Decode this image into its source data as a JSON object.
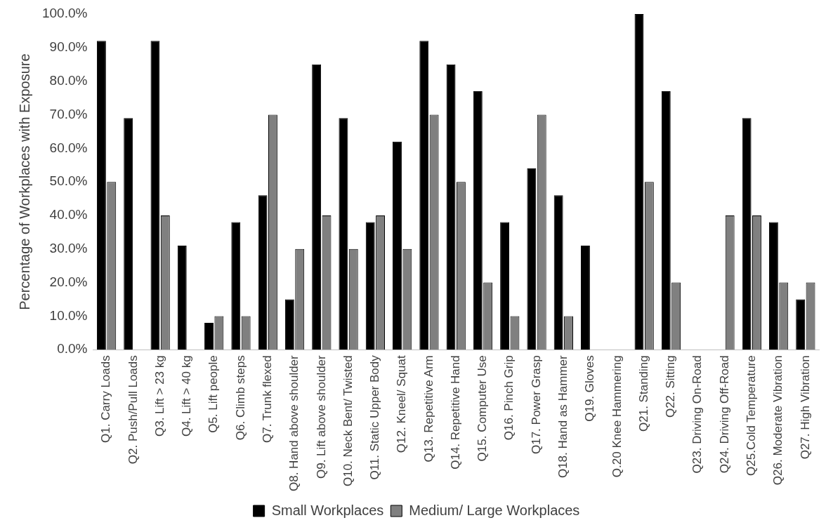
{
  "chart_data": {
    "type": "bar",
    "ylabel": "Percentage of Workplaces with Exposure",
    "categories": [
      "Q1. Carry Loads",
      "Q2. Push/Pull Loads",
      "Q3. Lift > 23 kg",
      "Q4. Lift > 40 kg",
      "Q5. Lift people",
      "Q6. Climb steps",
      "Q7. Trunk flexed",
      "Q8. Hand above shoulder",
      "Q9. Lift above shoulder",
      "Q10. Neck Bent/ Twisted",
      "Q11. Static Upper Body",
      "Q12. Kneel/ Squat",
      "Q13. Repetitive Arm",
      "Q14. Repetitive Hand",
      "Q15. Computer Use",
      "Q16. Pinch Grip",
      "Q17. Power Grasp",
      "Q18. Hand as Hammer",
      "Q19. Gloves",
      "Q.20 Knee Hammering",
      "Q21. Standing",
      "Q22. Sitting",
      "Q23. Driving On-Road",
      "Q24. Driving Off-Road",
      "Q25.Cold Temperature",
      "Q26. Moderate Vibration",
      "Q27. High Vibration"
    ],
    "series": [
      {
        "name": "Small Workplaces",
        "color": "#000000",
        "values": [
          92,
          69,
          92,
          31,
          8,
          38,
          46,
          15,
          85,
          69,
          38,
          62,
          92,
          85,
          77,
          38,
          54,
          46,
          31,
          0,
          100,
          77,
          0,
          0,
          69,
          38,
          15
        ]
      },
      {
        "name": "Medium/ Large Workplaces",
        "color": "#808080",
        "values": [
          50,
          0,
          40,
          0,
          10,
          10,
          70,
          30,
          40,
          30,
          40,
          30,
          70,
          50,
          20,
          10,
          70,
          10,
          0,
          0,
          50,
          20,
          0,
          40,
          40,
          20,
          20
        ]
      }
    ],
    "ylim": [
      0,
      100
    ],
    "yticks": [
      {
        "value": 0,
        "label": "0.0%"
      },
      {
        "value": 10,
        "label": "10.0%"
      },
      {
        "value": 20,
        "label": "20.0%"
      },
      {
        "value": 30,
        "label": "30.0%"
      },
      {
        "value": 40,
        "label": "40.0%"
      },
      {
        "value": 50,
        "label": "50.0%"
      },
      {
        "value": 60,
        "label": "60.0%"
      },
      {
        "value": 70,
        "label": "70.0%"
      },
      {
        "value": 80,
        "label": "80.0%"
      },
      {
        "value": 90,
        "label": "90.0%"
      },
      {
        "value": 100,
        "label": "100.0%"
      }
    ],
    "grid": false,
    "legend": "bottom"
  }
}
